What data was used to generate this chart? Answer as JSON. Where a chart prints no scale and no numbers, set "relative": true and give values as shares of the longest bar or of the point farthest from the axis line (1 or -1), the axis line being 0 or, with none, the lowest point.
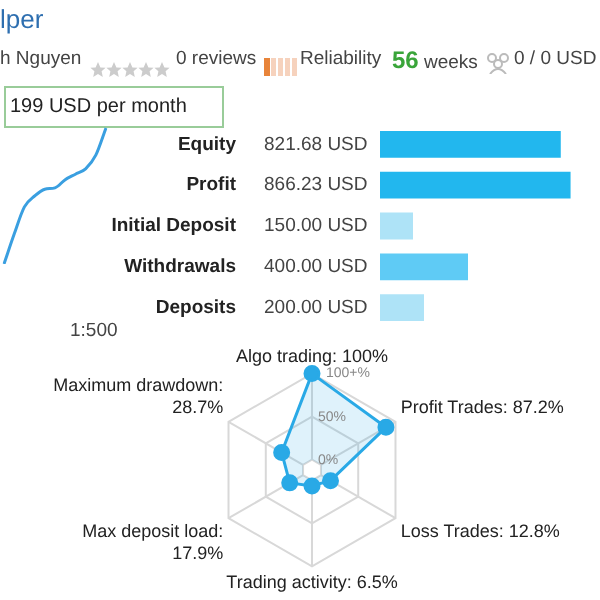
{
  "chart_data": [
    {
      "type": "other",
      "title": "lper",
      "annotations": [
        "h Nguyen",
        "0 reviews",
        "Reliability",
        "56 weeks",
        "0 / 0 USD",
        "199 USD per month",
        "1:500"
      ]
    },
    {
      "type": "line",
      "relative": true,
      "categories": [
        null,
        null,
        null,
        null,
        null,
        null,
        null,
        null,
        null,
        null,
        null
      ],
      "color": "#3a9fe0",
      "marker": "none",
      "values": [
        0,
        0.22,
        0.42,
        0.5,
        0.55,
        0.56,
        0.62,
        0.66,
        0.7,
        0.8,
        1.0
      ]
    },
    {
      "type": "bar",
      "orientation": "horizontal",
      "categories": [
        "Equity",
        "Profit",
        "Initial Deposit",
        "Withdrawals",
        "Deposits"
      ],
      "values": [
        821.68,
        866.23,
        150.0,
        400.0,
        200.0
      ],
      "colors": [
        "#22b7ee",
        "#22b7ee",
        "#aee3f7",
        "#5fcbf5",
        "#aee3f7"
      ],
      "value_labels": [
        "821.68 USD",
        "866.23 USD",
        "150.00 USD",
        "400.00 USD",
        "200.00 USD"
      ]
    },
    {
      "type": "radar",
      "categories": [
        "Algo trading: 100%",
        "Profit Trades: 87.2%",
        "Loss Trades: 12.8%",
        "Trading activity: 6.5%",
        "Max deposit load: 17.9%",
        "Maximum drawdown: 28.7%"
      ],
      "series": [
        {
          "color": "#29a9e6",
          "values": [
            100,
            87.2,
            12.8,
            6.5,
            17.9,
            28.7
          ]
        }
      ],
      "ylim": [
        -12,
        100
      ],
      "yticks": [
        {
          "value": 0,
          "label": "0%"
        },
        {
          "value": 50,
          "label": "50%"
        },
        {
          "value": 100,
          "label": "100+%"
        }
      ],
      "grid": true,
      "marker": "circle"
    }
  ]
}
